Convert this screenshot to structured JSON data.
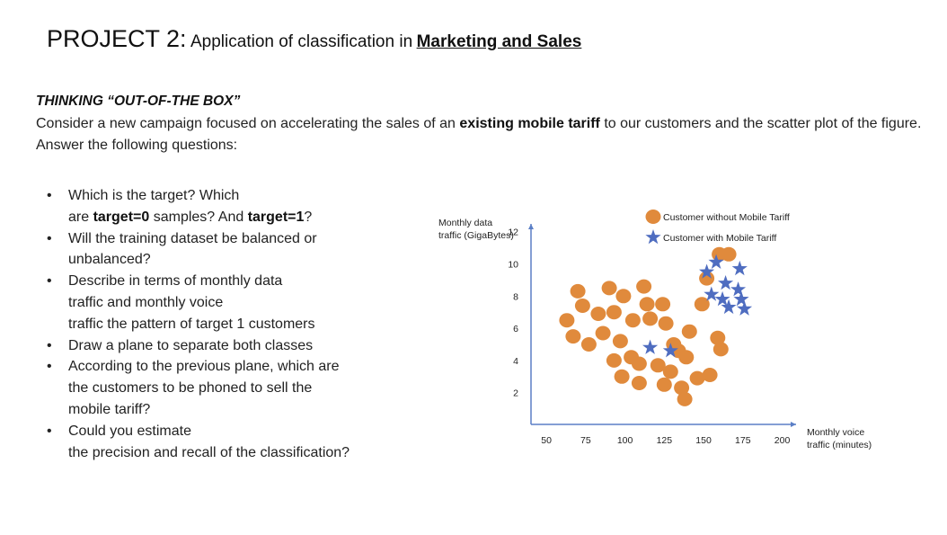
{
  "header": {
    "project": "PROJECT 2:",
    "title_rest": "Application of classification in",
    "title_underlined": "Marketing and Sales"
  },
  "section": {
    "heading": "THINKING “OUT-OF-THE BOX”",
    "intro_1": "Consider a new campaign focused on accelerating the sales of an ",
    "intro_bold": "existing mobile tariff",
    "intro_2": " to our customers and the scatter plot of the figure. Answer the following questions:"
  },
  "questions": [
    {
      "lines": [
        {
          "parts": [
            "Which is the target? Which"
          ]
        },
        {
          "parts": [
            "are ",
            "target=0",
            " samples? And ",
            "target=1",
            "?"
          ]
        }
      ]
    },
    {
      "lines": [
        {
          "parts": [
            "Will the training dataset be balanced or"
          ]
        },
        {
          "parts": [
            "unbalanced?"
          ]
        }
      ]
    },
    {
      "lines": [
        {
          "parts": [
            "Describe in terms of monthly data"
          ]
        },
        {
          "parts": [
            "traffic and monthly voice"
          ]
        },
        {
          "parts": [
            "traffic the pattern of target 1 customers"
          ]
        }
      ]
    },
    {
      "lines": [
        {
          "parts": [
            "Draw a plane to separate both classes"
          ]
        }
      ]
    },
    {
      "lines": [
        {
          "parts": [
            "According to the previous plane, which are"
          ]
        },
        {
          "parts": [
            "the customers to be phoned to sell the"
          ]
        },
        {
          "parts": [
            "mobile tariff?"
          ]
        }
      ]
    },
    {
      "lines": [
        {
          "parts": [
            "Could you estimate"
          ]
        },
        {
          "parts": [
            "the precision and recall of the classification?"
          ]
        }
      ]
    }
  ],
  "chart_data": {
    "type": "scatter",
    "ylabel": [
      "Monthly data",
      "traffic (GigaBytes)"
    ],
    "xlabel": [
      "Monthly voice",
      "traffic (minutes)"
    ],
    "xticks": [
      50,
      75,
      100,
      125,
      150,
      175,
      200
    ],
    "yticks": [
      2,
      4,
      6,
      8,
      10,
      12
    ],
    "xlim": [
      40,
      210
    ],
    "ylim": [
      0,
      13
    ],
    "grid": false,
    "legend_position": "top-right",
    "colors": {
      "without": "#E08A3C",
      "with": "#4F6DC0",
      "axis": "#5B7FC6"
    },
    "series": [
      {
        "name": "Customer without Mobile Tariff",
        "marker": "circle",
        "points": [
          [
            63,
            6.5
          ],
          [
            67,
            5.5
          ],
          [
            70,
            8.3
          ],
          [
            73,
            7.4
          ],
          [
            77,
            5
          ],
          [
            83,
            6.9
          ],
          [
            86,
            5.7
          ],
          [
            90,
            8.5
          ],
          [
            93,
            4
          ],
          [
            93,
            7
          ],
          [
            97,
            5.2
          ],
          [
            98,
            3
          ],
          [
            99,
            8
          ],
          [
            104,
            4.2
          ],
          [
            105,
            6.5
          ],
          [
            109,
            2.6
          ],
          [
            109,
            3.8
          ],
          [
            112,
            8.6
          ],
          [
            114,
            7.5
          ],
          [
            116,
            6.6
          ],
          [
            121,
            3.7
          ],
          [
            124,
            7.5
          ],
          [
            125,
            2.5
          ],
          [
            126,
            6.3
          ],
          [
            129,
            3.3
          ],
          [
            131,
            5
          ],
          [
            134,
            4.6
          ],
          [
            136,
            2.3
          ],
          [
            138,
            1.6
          ],
          [
            139,
            4.2
          ],
          [
            141,
            5.8
          ],
          [
            146,
            2.9
          ],
          [
            149,
            7.5
          ],
          [
            152,
            9.1
          ],
          [
            154,
            3.1
          ],
          [
            159,
            5.4
          ],
          [
            160,
            10.6
          ],
          [
            161,
            4.7
          ],
          [
            166,
            10.6
          ]
        ]
      },
      {
        "name": "Customer with Mobile Tariff",
        "marker": "star",
        "points": [
          [
            116,
            4.8
          ],
          [
            129,
            4.6
          ],
          [
            152,
            9.5
          ],
          [
            155,
            8.1
          ],
          [
            158,
            10.1
          ],
          [
            162,
            7.8
          ],
          [
            164,
            8.8
          ],
          [
            166,
            7.3
          ],
          [
            172,
            8.4
          ],
          [
            173,
            9.7
          ],
          [
            174,
            7.8
          ],
          [
            176,
            7.2
          ]
        ]
      }
    ]
  }
}
